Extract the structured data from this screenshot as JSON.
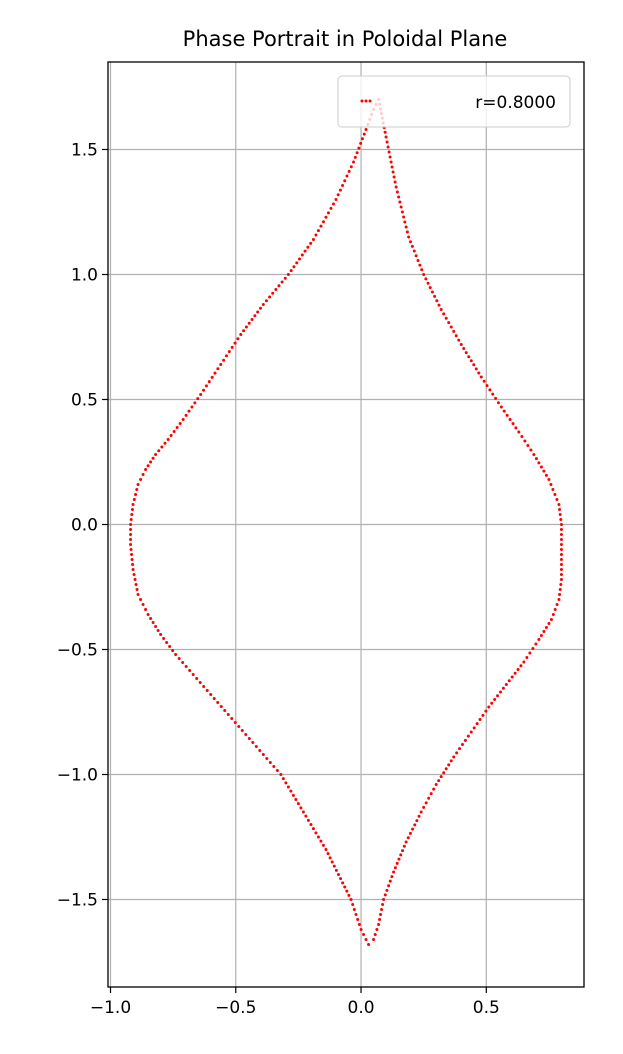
{
  "chart_data": {
    "type": "scatter",
    "title": "Phase Portrait in Poloidal Plane",
    "xlabel": "",
    "ylabel": "",
    "xlim": [
      -1.01,
      0.89
    ],
    "ylim": [
      -1.85,
      1.85
    ],
    "x_ticks": [
      -1.0,
      -0.5,
      0.0,
      0.5
    ],
    "x_tick_labels": [
      "−1.0",
      "−0.5",
      "0.0",
      "0.5"
    ],
    "y_ticks": [
      1.5,
      1.0,
      0.5,
      0.0,
      -0.5,
      -1.0,
      -1.5
    ],
    "y_tick_labels": [
      "1.5",
      "1.0",
      "0.5",
      "0.0",
      "−0.5",
      "−1.0",
      "−1.5"
    ],
    "grid": true,
    "legend_position": "upper right",
    "series": [
      {
        "name": "r=0.8000",
        "color": "#ff0000",
        "marker": "dot",
        "x": [
          0.07,
          0.1,
          0.14,
          0.19,
          0.25,
          0.32,
          0.4,
          0.48,
          0.56,
          0.63,
          0.69,
          0.75,
          0.79,
          0.8,
          0.8,
          0.8,
          0.8,
          0.79,
          0.76,
          0.71,
          0.65,
          0.58,
          0.51,
          0.44,
          0.37,
          0.3,
          0.24,
          0.18,
          0.13,
          0.09,
          0.07,
          0.05,
          0.03,
          0.0,
          -0.04,
          -0.09,
          -0.14,
          -0.2,
          -0.26,
          -0.32,
          -0.39,
          -0.46,
          -0.53,
          -0.6,
          -0.67,
          -0.74,
          -0.8,
          -0.85,
          -0.89,
          -0.91,
          -0.92,
          -0.92,
          -0.91,
          -0.89,
          -0.86,
          -0.82,
          -0.77,
          -0.71,
          -0.64,
          -0.56,
          -0.48,
          -0.39,
          -0.29,
          -0.19,
          -0.1,
          -0.03,
          0.02,
          0.05,
          0.07
        ],
        "y": [
          1.7,
          1.55,
          1.35,
          1.15,
          1.0,
          0.86,
          0.72,
          0.59,
          0.47,
          0.37,
          0.28,
          0.18,
          0.08,
          0.0,
          -0.08,
          -0.16,
          -0.22,
          -0.3,
          -0.38,
          -0.46,
          -0.55,
          -0.64,
          -0.73,
          -0.83,
          -0.93,
          -1.04,
          -1.15,
          -1.27,
          -1.39,
          -1.5,
          -1.6,
          -1.66,
          -1.68,
          -1.62,
          -1.5,
          -1.4,
          -1.3,
          -1.2,
          -1.1,
          -1.0,
          -0.92,
          -0.84,
          -0.76,
          -0.68,
          -0.6,
          -0.52,
          -0.44,
          -0.36,
          -0.28,
          -0.18,
          -0.08,
          0.0,
          0.08,
          0.16,
          0.22,
          0.28,
          0.34,
          0.42,
          0.52,
          0.64,
          0.76,
          0.88,
          1.0,
          1.14,
          1.3,
          1.45,
          1.58,
          1.66,
          1.7
        ]
      }
    ]
  }
}
